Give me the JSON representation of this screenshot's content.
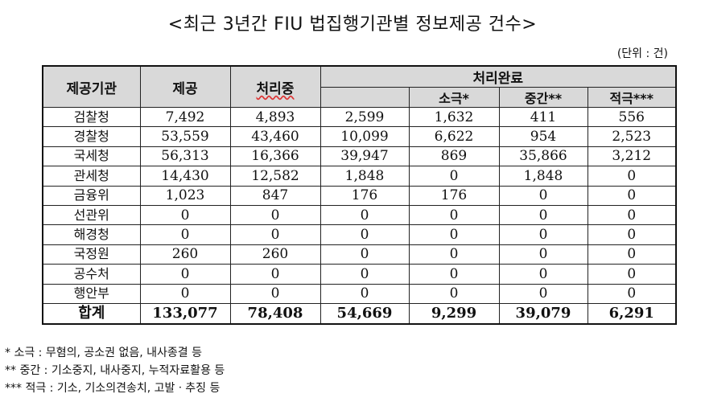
{
  "title": "<최근 3년간 FIU 법집행기관별 정보제공 건수>",
  "unit": "(단위 : 건)",
  "headers": {
    "agency": "제공기관",
    "provided": "제공",
    "processing": "처리중",
    "completed": "처리완료",
    "sub": [
      "",
      "소극*",
      "중간**",
      "적극***"
    ]
  },
  "rows": [
    [
      "검찰청",
      "7,492",
      "4,893",
      "2,599",
      "1,632",
      "411",
      "556"
    ],
    [
      "경찰청",
      "53,559",
      "43,460",
      "10,099",
      "6,622",
      "954",
      "2,523"
    ],
    [
      "국세청",
      "56,313",
      "16,366",
      "39,947",
      "869",
      "35,866",
      "3,212"
    ],
    [
      "관세청",
      "14,430",
      "12,582",
      "1,848",
      "0",
      "1,848",
      "0"
    ],
    [
      "금융위",
      "1,023",
      "847",
      "176",
      "176",
      "0",
      "0"
    ],
    [
      "선관위",
      "0",
      "0",
      "0",
      "0",
      "0",
      "0"
    ],
    [
      "해경청",
      "0",
      "0",
      "0",
      "0",
      "0",
      "0"
    ],
    [
      "국정원",
      "260",
      "260",
      "0",
      "0",
      "0",
      "0"
    ],
    [
      "공수처",
      "0",
      "0",
      "0",
      "0",
      "0",
      "0"
    ],
    [
      "행안부",
      "0",
      "0",
      "0",
      "0",
      "0",
      "0"
    ]
  ],
  "total": [
    "합계",
    "133,077",
    "78,408",
    "54,669",
    "9,299",
    "39,079",
    "6,291"
  ],
  "notes": [
    "* 소극 : 무혐의, 공소권 없음, 내사종결 등",
    "** 중간 : 기소중지, 내사중지, 누적자료활용 등",
    "*** 적극 : 기소, 기소의견송치, 고발ㆍ추징 등"
  ]
}
